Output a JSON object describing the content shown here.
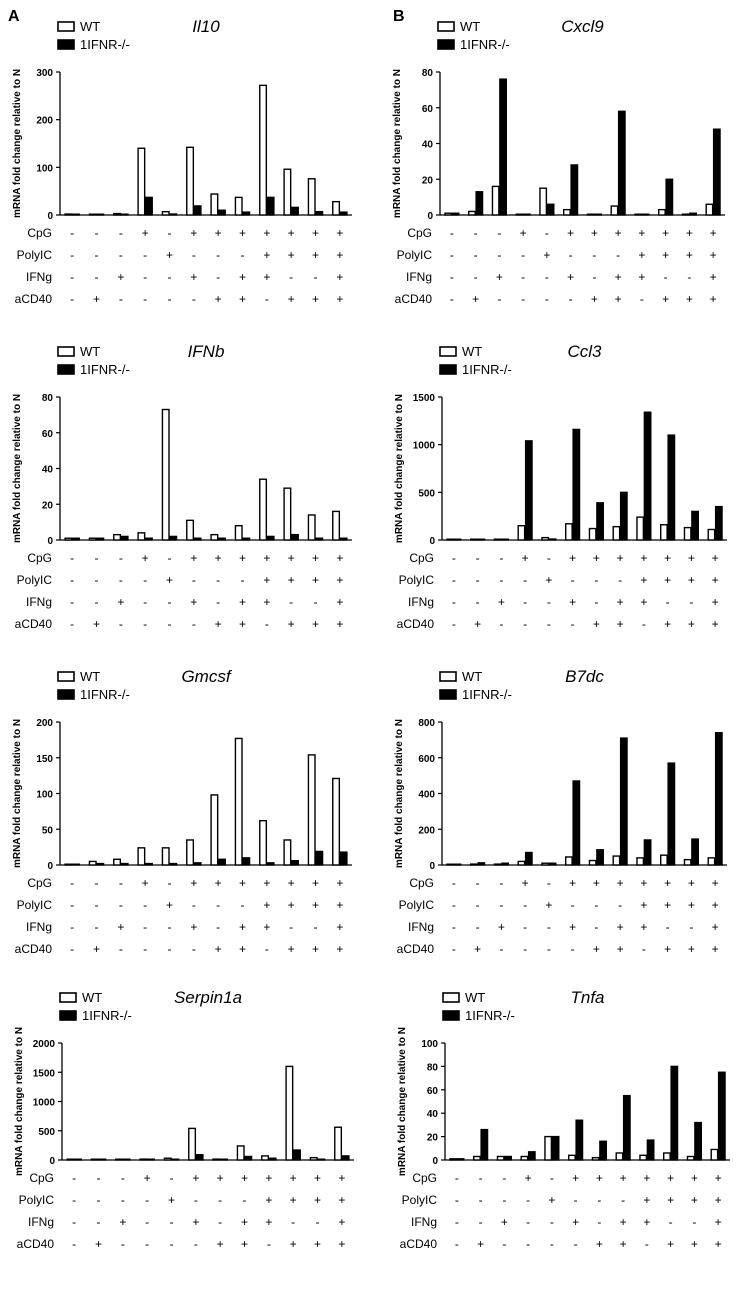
{
  "figure": {
    "panel_labels": [
      "A",
      "B"
    ]
  },
  "colors": {
    "wt_fill": "#ffffff",
    "ko_fill": "#000000",
    "stroke": "#000000"
  },
  "chart_data": [
    {
      "type": "bar",
      "panel": "A",
      "title": "Il10",
      "ylabel": "mRNA fold change relative to N",
      "ylim": [
        0,
        300
      ],
      "yticks": [
        0,
        100,
        200,
        300
      ],
      "legend": [
        "WT",
        "1IFNR-/-"
      ],
      "legend_placement": "top-left",
      "conditions": {
        "CpG": [
          "-",
          "-",
          "-",
          "+",
          "-",
          "+",
          "+",
          "+",
          "+",
          "+",
          "+",
          "+"
        ],
        "PolyIC": [
          "-",
          "-",
          "-",
          "-",
          "+",
          "-",
          "-",
          "-",
          "+",
          "+",
          "+",
          "+"
        ],
        "IFNg": [
          "-",
          "-",
          "+",
          "-",
          "-",
          "+",
          "-",
          "+",
          "+",
          "-",
          "-",
          "+"
        ],
        "aCD40": [
          "-",
          "+",
          "-",
          "-",
          "-",
          "-",
          "+",
          "+",
          "-",
          "+",
          "+",
          "+"
        ]
      },
      "series": [
        {
          "name": "WT",
          "values": [
            2,
            1,
            3,
            140,
            7,
            142,
            44,
            37,
            272,
            96,
            76,
            28
          ]
        },
        {
          "name": "1IFNR-/-",
          "values": [
            1,
            1,
            1,
            37,
            2,
            19,
            10,
            6,
            37,
            16,
            7,
            6
          ]
        }
      ]
    },
    {
      "type": "bar",
      "panel": "B",
      "title": "Cxcl9",
      "ylabel": "mRNA fold change relative to N",
      "ylim": [
        0,
        80
      ],
      "yticks": [
        0,
        20,
        40,
        60,
        80
      ],
      "legend": [
        "WT",
        "1IFNR-/-"
      ],
      "legend_placement": "top-left",
      "conditions": {
        "CpG": [
          "-",
          "-",
          "-",
          "+",
          "-",
          "+",
          "+",
          "+",
          "+",
          "+",
          "+",
          "+"
        ],
        "PolyIC": [
          "-",
          "-",
          "-",
          "-",
          "+",
          "-",
          "-",
          "-",
          "+",
          "+",
          "+",
          "+"
        ],
        "IFNg": [
          "-",
          "-",
          "+",
          "-",
          "-",
          "+",
          "-",
          "+",
          "+",
          "-",
          "-",
          "+"
        ],
        "aCD40": [
          "-",
          "+",
          "-",
          "-",
          "-",
          "-",
          "+",
          "+",
          "-",
          "+",
          "+",
          "+"
        ]
      },
      "series": [
        {
          "name": "WT",
          "values": [
            1,
            2,
            16,
            0,
            15,
            3,
            0,
            5,
            0,
            3,
            0,
            6
          ]
        },
        {
          "name": "1IFNR-/-",
          "values": [
            1,
            13,
            76,
            0,
            6,
            28,
            0,
            58,
            0,
            20,
            1,
            48
          ]
        }
      ]
    },
    {
      "type": "bar",
      "panel": "A",
      "title": "IFNb",
      "ylabel": "mRNA fold change relative to N",
      "ylim": [
        0,
        80
      ],
      "yticks": [
        0,
        20,
        40,
        60,
        80
      ],
      "legend": [
        "WT",
        "1IFNR-/-"
      ],
      "legend_placement": "top-left",
      "conditions": {
        "CpG": [
          "-",
          "-",
          "-",
          "+",
          "-",
          "+",
          "+",
          "+",
          "+",
          "+",
          "+",
          "+"
        ],
        "PolyIC": [
          "-",
          "-",
          "-",
          "-",
          "+",
          "-",
          "-",
          "-",
          "+",
          "+",
          "+",
          "+"
        ],
        "IFNg": [
          "-",
          "-",
          "+",
          "-",
          "-",
          "+",
          "-",
          "+",
          "+",
          "-",
          "-",
          "+"
        ],
        "aCD40": [
          "-",
          "+",
          "-",
          "-",
          "-",
          "-",
          "+",
          "+",
          "-",
          "+",
          "+",
          "+"
        ]
      },
      "series": [
        {
          "name": "WT",
          "values": [
            1,
            1,
            3,
            4,
            73,
            11,
            3,
            8,
            34,
            29,
            14,
            16
          ]
        },
        {
          "name": "1IFNR-/-",
          "values": [
            1,
            1,
            2,
            1,
            2,
            1,
            1,
            1,
            2,
            3,
            1,
            1
          ]
        }
      ]
    },
    {
      "type": "bar",
      "panel": "B",
      "title": "Ccl3",
      "ylabel": "mRNA fold change relative to N",
      "ylim": [
        0,
        1500
      ],
      "yticks": [
        0,
        500,
        1000,
        1500
      ],
      "legend": [
        "WT",
        "1IFNR-/-"
      ],
      "legend_placement": "top-left",
      "conditions": {
        "CpG": [
          "-",
          "-",
          "-",
          "+",
          "-",
          "+",
          "+",
          "+",
          "+",
          "+",
          "+",
          "+"
        ],
        "PolyIC": [
          "-",
          "-",
          "-",
          "-",
          "+",
          "-",
          "-",
          "-",
          "+",
          "+",
          "+",
          "+"
        ],
        "IFNg": [
          "-",
          "-",
          "+",
          "-",
          "-",
          "+",
          "-",
          "+",
          "+",
          "-",
          "-",
          "+"
        ],
        "aCD40": [
          "-",
          "+",
          "-",
          "-",
          "-",
          "-",
          "+",
          "+",
          "-",
          "+",
          "+",
          "+"
        ]
      },
      "series": [
        {
          "name": "WT",
          "values": [
            2,
            5,
            2,
            150,
            25,
            170,
            120,
            140,
            240,
            160,
            130,
            110
          ]
        },
        {
          "name": "1IFNR-/-",
          "values": [
            1,
            2,
            1,
            1040,
            10,
            1160,
            390,
            500,
            1340,
            1100,
            300,
            350
          ]
        }
      ]
    },
    {
      "type": "bar",
      "panel": "A",
      "title": "Gmcsf",
      "ylabel": "mRNA fold change relative to N",
      "ylim": [
        0,
        200
      ],
      "yticks": [
        0,
        50,
        100,
        150,
        200
      ],
      "legend": [
        "WT",
        "1IFNR-/-"
      ],
      "legend_placement": "top-left",
      "conditions": {
        "CpG": [
          "-",
          "-",
          "-",
          "+",
          "-",
          "+",
          "+",
          "+",
          "+",
          "+",
          "+",
          "+"
        ],
        "PolyIC": [
          "-",
          "-",
          "-",
          "-",
          "+",
          "-",
          "-",
          "-",
          "+",
          "+",
          "+",
          "+"
        ],
        "IFNg": [
          "-",
          "-",
          "+",
          "-",
          "-",
          "+",
          "-",
          "+",
          "+",
          "-",
          "-",
          "+"
        ],
        "aCD40": [
          "-",
          "+",
          "-",
          "-",
          "-",
          "-",
          "+",
          "+",
          "-",
          "+",
          "+",
          "+"
        ]
      },
      "series": [
        {
          "name": "WT",
          "values": [
            1,
            5,
            8,
            24,
            24,
            35,
            98,
            177,
            62,
            35,
            154,
            121
          ]
        },
        {
          "name": "1IFNR-/-",
          "values": [
            1,
            2,
            2,
            2,
            2,
            3,
            8,
            10,
            3,
            6,
            19,
            18
          ]
        }
      ]
    },
    {
      "type": "bar",
      "panel": "B",
      "title": "B7dc",
      "ylabel": "mRNA fold change relative to N",
      "ylim": [
        0,
        800
      ],
      "yticks": [
        0,
        200,
        400,
        600,
        800
      ],
      "legend": [
        "WT",
        "1IFNR-/-"
      ],
      "legend_placement": "top-left",
      "conditions": {
        "CpG": [
          "-",
          "-",
          "-",
          "+",
          "-",
          "+",
          "+",
          "+",
          "+",
          "+",
          "+",
          "+"
        ],
        "PolyIC": [
          "-",
          "-",
          "-",
          "-",
          "+",
          "-",
          "-",
          "-",
          "+",
          "+",
          "+",
          "+"
        ],
        "IFNg": [
          "-",
          "-",
          "+",
          "-",
          "-",
          "+",
          "-",
          "+",
          "+",
          "-",
          "-",
          "+"
        ],
        "aCD40": [
          "-",
          "+",
          "-",
          "-",
          "-",
          "-",
          "+",
          "+",
          "-",
          "+",
          "+",
          "+"
        ]
      },
      "series": [
        {
          "name": "WT",
          "values": [
            2,
            5,
            5,
            20,
            10,
            45,
            25,
            50,
            40,
            55,
            30,
            40
          ]
        },
        {
          "name": "1IFNR-/-",
          "values": [
            2,
            12,
            10,
            70,
            10,
            470,
            85,
            710,
            140,
            570,
            145,
            740
          ]
        }
      ]
    },
    {
      "type": "bar",
      "panel": "A",
      "title": "Serpin1a",
      "ylabel": "mRNA fold change relative to N",
      "ylim": [
        0,
        2000
      ],
      "yticks": [
        0,
        500,
        1000,
        1500,
        2000
      ],
      "legend": [
        "WT",
        "1IFNR-/-"
      ],
      "legend_placement": "top-left",
      "conditions": {
        "CpG": [
          "-",
          "-",
          "-",
          "+",
          "-",
          "+",
          "+",
          "+",
          "+",
          "+",
          "+",
          "+"
        ],
        "PolyIC": [
          "-",
          "-",
          "-",
          "-",
          "+",
          "-",
          "-",
          "-",
          "+",
          "+",
          "+",
          "+"
        ],
        "IFNg": [
          "-",
          "-",
          "+",
          "-",
          "-",
          "+",
          "-",
          "+",
          "+",
          "-",
          "-",
          "+"
        ],
        "aCD40": [
          "-",
          "+",
          "-",
          "-",
          "-",
          "-",
          "+",
          "+",
          "-",
          "+",
          "+",
          "+"
        ]
      },
      "series": [
        {
          "name": "WT",
          "values": [
            5,
            10,
            8,
            15,
            30,
            540,
            15,
            240,
            70,
            1600,
            40,
            560
          ]
        },
        {
          "name": "1IFNR-/-",
          "values": [
            3,
            5,
            5,
            10,
            5,
            90,
            10,
            60,
            30,
            170,
            10,
            70
          ]
        }
      ]
    },
    {
      "type": "bar",
      "panel": "B",
      "title": "Tnfa",
      "ylabel": "mRNA fold change relative to N",
      "ylim": [
        0,
        100
      ],
      "yticks": [
        0,
        20,
        40,
        60,
        80,
        100
      ],
      "legend": [
        "WT",
        "1IFNR-/-"
      ],
      "legend_placement": "top-left",
      "conditions": {
        "CpG": [
          "-",
          "-",
          "-",
          "+",
          "-",
          "+",
          "+",
          "+",
          "+",
          "+",
          "+",
          "+"
        ],
        "PolyIC": [
          "-",
          "-",
          "-",
          "-",
          "+",
          "-",
          "-",
          "-",
          "+",
          "+",
          "+",
          "+"
        ],
        "IFNg": [
          "-",
          "-",
          "+",
          "-",
          "-",
          "+",
          "-",
          "+",
          "+",
          "-",
          "-",
          "+"
        ],
        "aCD40": [
          "-",
          "+",
          "-",
          "-",
          "-",
          "-",
          "+",
          "+",
          "-",
          "+",
          "+",
          "+"
        ]
      },
      "series": [
        {
          "name": "WT",
          "values": [
            1,
            3,
            3,
            3,
            20,
            4,
            2,
            6,
            4,
            6,
            3,
            9
          ]
        },
        {
          "name": "1IFNR-/-",
          "values": [
            1,
            26,
            3,
            7,
            20,
            34,
            16,
            55,
            17,
            80,
            32,
            75
          ]
        }
      ]
    }
  ]
}
